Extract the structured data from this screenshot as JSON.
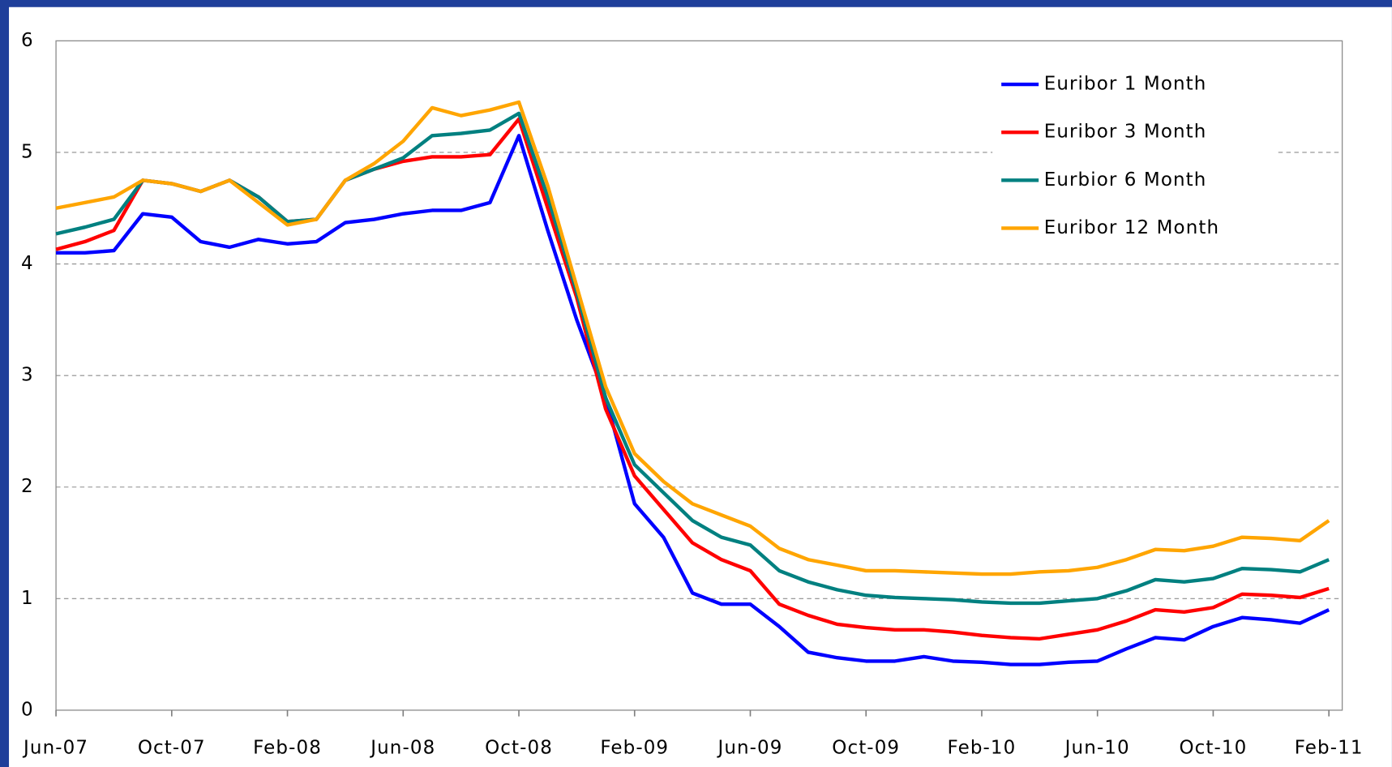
{
  "chart_data": {
    "type": "line",
    "categories": [
      "Jun-07",
      null,
      null,
      null,
      "Oct-07",
      null,
      null,
      null,
      "Feb-08",
      null,
      null,
      null,
      "Jun-08",
      null,
      null,
      null,
      "Oct-08",
      null,
      null,
      null,
      "Feb-09",
      null,
      null,
      null,
      "Jun-09",
      null,
      null,
      null,
      "Oct-09",
      null,
      null,
      null,
      "Feb-10",
      null,
      null,
      null,
      "Jun-10",
      null,
      null,
      null,
      "Oct-10",
      null,
      null,
      null,
      "Feb-11"
    ],
    "series": [
      {
        "name": "Euribor 1 Month",
        "color": "#0000ff",
        "values": [
          4.1,
          4.1,
          4.12,
          4.45,
          4.42,
          4.2,
          4.15,
          4.22,
          4.18,
          4.2,
          4.37,
          4.4,
          4.45,
          4.48,
          4.48,
          4.55,
          5.15,
          4.3,
          3.5,
          2.8,
          1.85,
          1.55,
          1.05,
          0.95,
          0.95,
          0.75,
          0.52,
          0.47,
          0.44,
          0.44,
          0.48,
          0.44,
          0.43,
          0.41,
          0.41,
          0.43,
          0.44,
          0.55,
          0.65,
          0.63,
          0.75,
          0.83,
          0.81,
          0.78,
          0.9
        ]
      },
      {
        "name": "Euribor 3 Month",
        "color": "#ff0000",
        "values": [
          4.13,
          4.2,
          4.3,
          4.75,
          4.72,
          4.65,
          4.75,
          4.6,
          4.38,
          4.4,
          4.75,
          4.85,
          4.92,
          4.96,
          4.96,
          4.98,
          5.3,
          4.5,
          3.7,
          2.7,
          2.1,
          1.8,
          1.5,
          1.35,
          1.25,
          0.95,
          0.85,
          0.77,
          0.74,
          0.72,
          0.72,
          0.7,
          0.67,
          0.65,
          0.64,
          0.68,
          0.72,
          0.8,
          0.9,
          0.88,
          0.92,
          1.04,
          1.03,
          1.01,
          1.09
        ]
      },
      {
        "name": "Eurbior 6 Month",
        "color": "#008080",
        "values": [
          4.27,
          4.33,
          4.4,
          4.75,
          4.72,
          4.65,
          4.75,
          4.6,
          4.38,
          4.4,
          4.75,
          4.85,
          4.95,
          5.15,
          5.17,
          5.2,
          5.35,
          4.6,
          3.75,
          2.8,
          2.2,
          1.95,
          1.7,
          1.55,
          1.48,
          1.25,
          1.15,
          1.08,
          1.03,
          1.01,
          1.0,
          0.99,
          0.97,
          0.96,
          0.96,
          0.98,
          1.0,
          1.07,
          1.17,
          1.15,
          1.18,
          1.27,
          1.26,
          1.24,
          1.35
        ]
      },
      {
        "name": "Euribor 12 Month",
        "color": "#ffa500",
        "values": [
          4.5,
          4.55,
          4.6,
          4.75,
          4.72,
          4.65,
          4.75,
          4.55,
          4.35,
          4.4,
          4.75,
          4.9,
          5.1,
          5.4,
          5.33,
          5.38,
          5.45,
          4.7,
          3.8,
          2.9,
          2.3,
          2.05,
          1.85,
          1.75,
          1.65,
          1.45,
          1.35,
          1.3,
          1.25,
          1.25,
          1.24,
          1.23,
          1.22,
          1.22,
          1.24,
          1.25,
          1.28,
          1.35,
          1.44,
          1.43,
          1.47,
          1.55,
          1.54,
          1.52,
          1.7
        ]
      }
    ],
    "ylim": [
      0,
      6
    ],
    "yticks": [
      0,
      1,
      2,
      3,
      4,
      5,
      6
    ],
    "grid": true,
    "legend": "top-right"
  }
}
